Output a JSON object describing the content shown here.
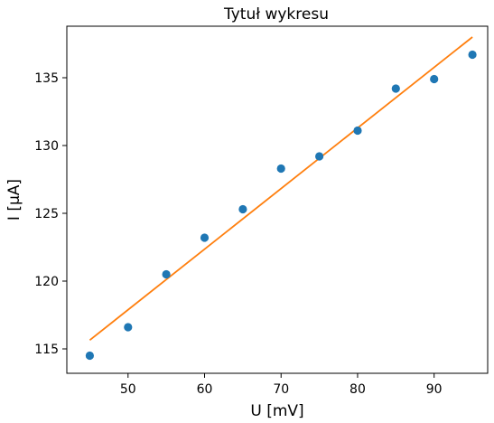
{
  "chart_data": {
    "type": "scatter",
    "title": "Tytuł wykresu",
    "xlabel": "U [mV]",
    "ylabel": "I [μA]",
    "xlim": [
      42,
      97
    ],
    "ylim": [
      113.2,
      138.8
    ],
    "xticks": [
      50,
      60,
      70,
      80,
      90
    ],
    "yticks": [
      115,
      120,
      125,
      130,
      135
    ],
    "grid": false,
    "series": [
      {
        "type": "scatter",
        "color": "#1f77b4",
        "x": [
          45,
          50,
          55,
          60,
          65,
          70,
          75,
          80,
          85,
          90,
          95
        ],
        "y": [
          114.5,
          116.6,
          120.5,
          123.2,
          125.3,
          128.3,
          129.2,
          131.1,
          134.2,
          134.9,
          136.7
        ]
      },
      {
        "type": "line",
        "color": "#ff7f0e",
        "x": [
          45,
          95
        ],
        "y": [
          115.65,
          138.0
        ]
      }
    ]
  }
}
